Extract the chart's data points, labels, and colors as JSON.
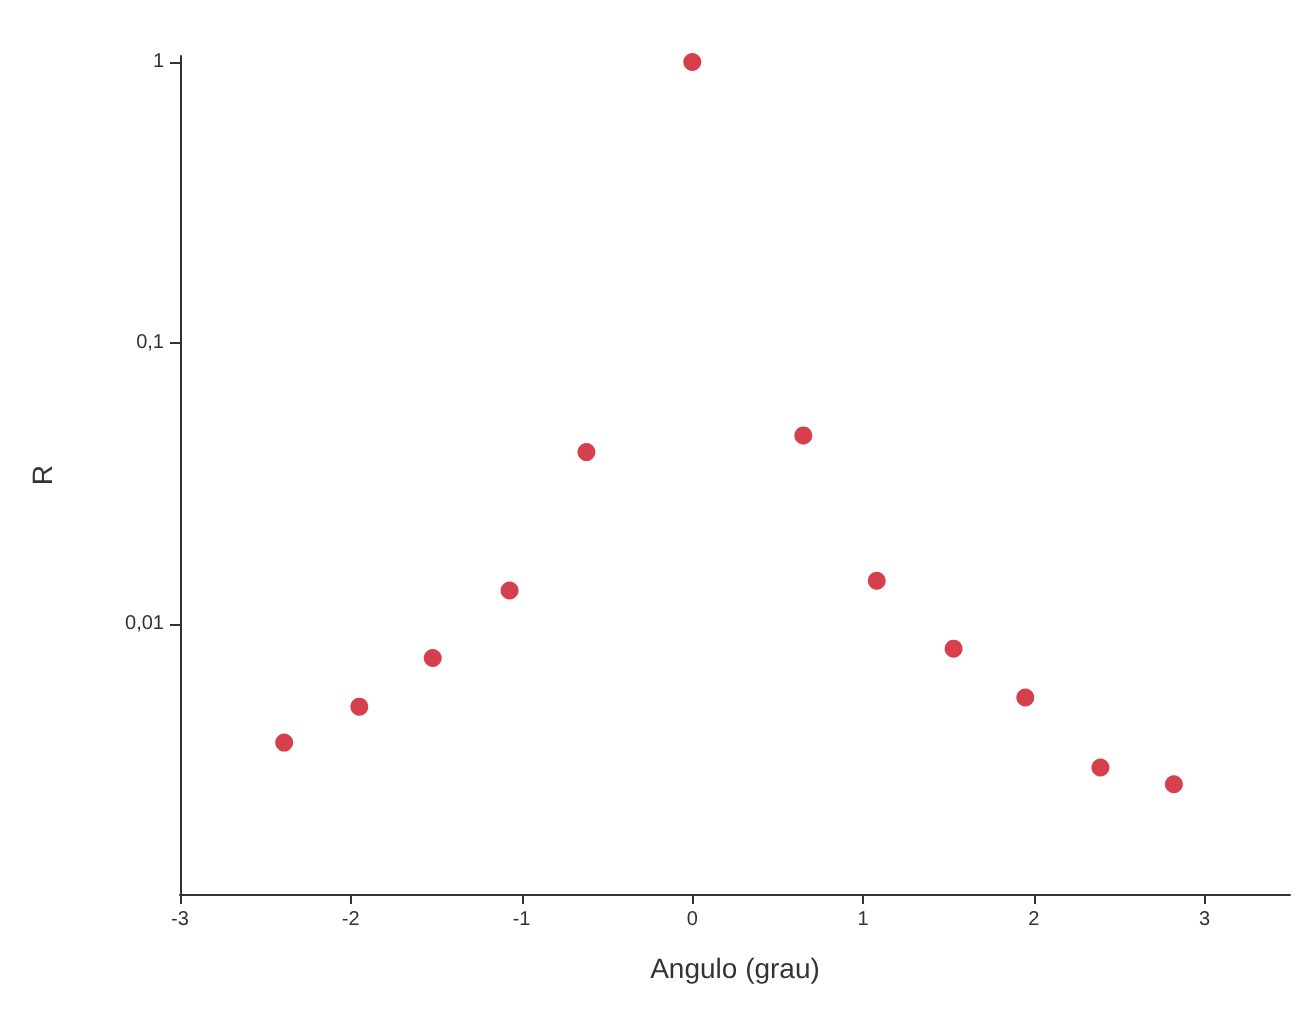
{
  "chart_data": {
    "type": "scatter",
    "xlabel": "Angulo (grau)",
    "ylabel": "R",
    "log": "y",
    "grid": false,
    "marker": "circle",
    "x": [
      -2.39,
      -1.95,
      -1.52,
      -1.07,
      -0.62,
      0,
      0.65,
      1.08,
      1.53,
      1.95,
      2.39,
      2.82
    ],
    "series": [
      {
        "color": "#cc1020",
        "values": [
          0.0038,
          0.0051,
          0.0076,
          0.0132,
          0.041,
          1,
          0.047,
          0.0143,
          0.0082,
          0.0055,
          0.0031,
          0.0027
        ]
      }
    ],
    "xlim": [
      -3,
      3.5
    ],
    "xticks": [
      -3,
      -2,
      -1,
      0,
      1,
      2,
      3
    ],
    "ylim": [
      0.0011,
      1.05
    ],
    "yticks": [
      {
        "value": 0.01,
        "label": "0,01"
      },
      {
        "value": 0.1,
        "label": "0,1"
      },
      {
        "value": 1,
        "label": "1"
      }
    ]
  }
}
